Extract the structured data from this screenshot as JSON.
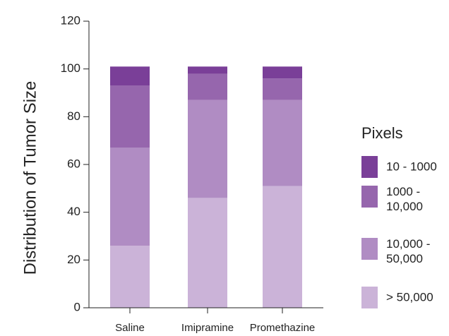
{
  "chart_data": {
    "type": "bar",
    "stacked": true,
    "ylabel": "Distribution of Tumor Size",
    "xlabel": "",
    "ylim": [
      0,
      120
    ],
    "yticks": [
      "0",
      "20",
      "40",
      "60",
      "80",
      "100",
      "120"
    ],
    "categories": [
      "Saline",
      "Imipramine",
      "Promethazine"
    ],
    "legend_title": "Pixels",
    "legend_position": "right",
    "series": [
      {
        "name": "> 50,000",
        "color": "#cbb3d8",
        "values": [
          26,
          46,
          51
        ]
      },
      {
        "name": "10,000 - 50,000",
        "color": "#b08cc3",
        "values": [
          41,
          41,
          36
        ]
      },
      {
        "name": "1000 - 10,000",
        "color": "#9666ad",
        "values": [
          26,
          11,
          9
        ]
      },
      {
        "name": "10 - 1000",
        "color": "#7a3f98",
        "values": [
          8,
          3,
          5
        ]
      }
    ],
    "legend": [
      {
        "color": "#7a3f98",
        "lines": [
          "10 - 1000"
        ]
      },
      {
        "color": "#9666ad",
        "lines": [
          "1000 -",
          "10,000"
        ]
      },
      {
        "color": "#b08cc3",
        "lines": [
          "10,000 -",
          "50,000"
        ]
      },
      {
        "color": "#cbb3d8",
        "lines": [
          "> 50,000"
        ]
      }
    ]
  }
}
